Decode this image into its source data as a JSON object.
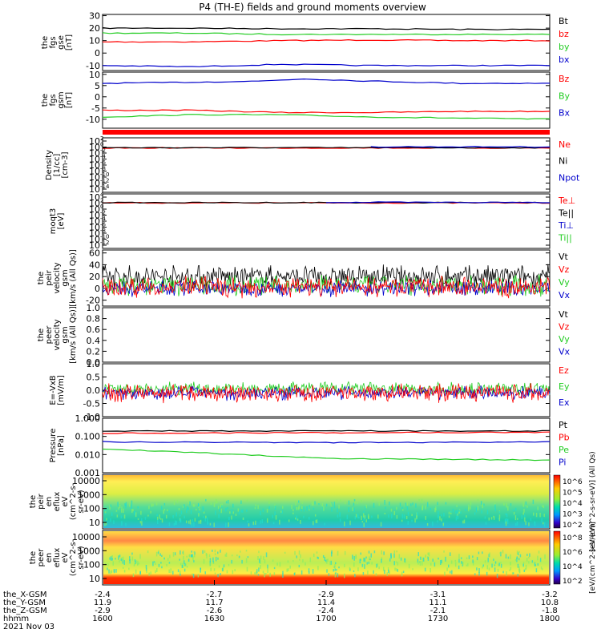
{
  "title": "P4 (TH-E) fields and ground moments overview",
  "colors": {
    "black": "#000000",
    "red": "#ff0000",
    "green": "#22cc22",
    "blue": "#0000cc"
  },
  "chart_data": [
    {
      "type": "line",
      "ylabel": [
        "the",
        "fgs",
        "gse",
        "[nT]"
      ],
      "ylim": [
        -14,
        31
      ],
      "ticks": [
        "30",
        "20",
        "10",
        "0",
        "-10"
      ],
      "tickvals": [
        30,
        20,
        10,
        0,
        -10
      ],
      "legend": [
        {
          "name": "Bt",
          "color": "black"
        },
        {
          "name": "bz",
          "color": "red"
        },
        {
          "name": "by",
          "color": "green"
        },
        {
          "name": "bx",
          "color": "blue"
        }
      ],
      "series": [
        {
          "color": "black",
          "x": [
            0,
            0.2,
            0.4,
            0.6,
            0.8,
            1
          ],
          "y": [
            20,
            20,
            19.5,
            19.5,
            19,
            19
          ]
        },
        {
          "color": "red",
          "x": [
            0,
            0.2,
            0.4,
            0.6,
            0.8,
            1
          ],
          "y": [
            9,
            9,
            10,
            10.5,
            10,
            10
          ]
        },
        {
          "color": "green",
          "x": [
            0,
            0.2,
            0.4,
            0.6,
            0.8,
            1
          ],
          "y": [
            16,
            16,
            15,
            15,
            15,
            15
          ]
        },
        {
          "color": "blue",
          "x": [
            0,
            0.2,
            0.4,
            0.6,
            0.8,
            1
          ],
          "y": [
            -10,
            -11,
            -9,
            -10,
            -10,
            -10
          ]
        }
      ]
    },
    {
      "type": "line",
      "ylabel": [
        "the",
        "fgs",
        "gsm",
        "[nT]"
      ],
      "ylim": [
        -14,
        11
      ],
      "ticks": [
        "10",
        "5",
        "0",
        "-5",
        "-10"
      ],
      "tickvals": [
        10,
        5,
        0,
        -5,
        -10
      ],
      "legend": [
        {
          "name": "Bz",
          "color": "red"
        },
        {
          "name": "By",
          "color": "green"
        },
        {
          "name": "Bx",
          "color": "blue"
        }
      ],
      "series": [
        {
          "color": "blue",
          "x": [
            0,
            0.2,
            0.35,
            0.45,
            0.6,
            0.8,
            1
          ],
          "y": [
            6,
            6.5,
            7,
            8,
            7,
            6,
            6
          ]
        },
        {
          "color": "red",
          "x": [
            0,
            0.2,
            0.4,
            0.6,
            0.8,
            1
          ],
          "y": [
            -6,
            -6,
            -7,
            -7,
            -6.5,
            -6.5
          ]
        },
        {
          "color": "green",
          "x": [
            0,
            0.2,
            0.4,
            0.6,
            0.8,
            1
          ],
          "y": [
            -9,
            -8,
            -8,
            -9,
            -9.5,
            -10
          ]
        }
      ]
    },
    {
      "type": "line",
      "scale": "log",
      "ylabel": [
        "Density",
        "[1/cc]",
        "[cm-3]"
      ],
      "ticks": [
        "10^2",
        "10^0",
        "10^-2",
        "10^-4",
        "10^-6",
        "10^-8",
        "10^-10",
        "10^-12",
        "10^-14"
      ],
      "legend": [
        {
          "name": "Ne",
          "color": "red"
        },
        {
          "name": "Ni",
          "color": "black"
        },
        {
          "name": "Npot",
          "color": "blue"
        }
      ],
      "series": [
        {
          "color": "red",
          "x": [
            0,
            1
          ],
          "y": [
            0.5,
            0.5
          ]
        },
        {
          "color": "black",
          "x": [
            0,
            1
          ],
          "y": [
            0.6,
            0.6
          ]
        },
        {
          "color": "blue",
          "x": [
            0.6,
            1
          ],
          "y": [
            1.2,
            1.2
          ]
        }
      ]
    },
    {
      "type": "line",
      "scale": "log",
      "ylabel": [
        "moqt3",
        "[eV]"
      ],
      "ticks": [
        "10^4",
        "10^2",
        "10^0",
        "10^-2",
        "10^-4",
        "10^-6",
        "10^-8",
        "10^-10",
        "10^-12"
      ],
      "legend": [
        {
          "name": "Te⊥",
          "color": "red"
        },
        {
          "name": "Te||",
          "color": "black"
        },
        {
          "name": "Ti⊥",
          "color": "blue"
        },
        {
          "name": "Ti||",
          "color": "green"
        }
      ],
      "series": [
        {
          "color": "red",
          "x": [
            0,
            1
          ],
          "y": [
            1.2,
            1.2
          ]
        },
        {
          "color": "black",
          "x": [
            0,
            1
          ],
          "y": [
            1.5,
            1.5
          ]
        },
        {
          "color": "blue",
          "x": [
            0.5,
            1
          ],
          "y": [
            1.8,
            1.8
          ]
        }
      ]
    },
    {
      "type": "line",
      "ylabel": [
        "the",
        "peir",
        "velocity",
        "gsm",
        "[km/s (All Qs)]"
      ],
      "ylim": [
        -30,
        65
      ],
      "ticks": [
        "60",
        "40",
        "20",
        "0",
        "-20"
      ],
      "tickvals": [
        60,
        40,
        20,
        0,
        -20
      ],
      "legend": [
        {
          "name": "Vt",
          "color": "black"
        },
        {
          "name": "Vz",
          "color": "red"
        },
        {
          "name": "Vy",
          "color": "green"
        },
        {
          "name": "Vx",
          "color": "blue"
        }
      ],
      "noisy": [
        {
          "color": "black",
          "center": 20,
          "amp": 22
        },
        {
          "color": "green",
          "center": 5,
          "amp": 20
        },
        {
          "color": "blue",
          "center": 0,
          "amp": 15
        },
        {
          "color": "red",
          "center": 2,
          "amp": 20
        }
      ]
    },
    {
      "type": "line",
      "ylabel": [
        "the",
        "peer",
        "velocity",
        "gsm",
        "[km/s (All Qs)]"
      ],
      "ylim": [
        0,
        1
      ],
      "ticks": [
        "1.0",
        "0.8",
        "0.6",
        "0.4",
        "0.2",
        "0.0"
      ],
      "tickvals": [
        1,
        0.8,
        0.6,
        0.4,
        0.2,
        0
      ],
      "legend": [
        {
          "name": "Vt",
          "color": "black"
        },
        {
          "name": "Vz",
          "color": "red"
        },
        {
          "name": "Vy",
          "color": "green"
        },
        {
          "name": "Vx",
          "color": "blue"
        }
      ]
    },
    {
      "type": "line",
      "ylabel": [
        "E=-VxB",
        "[mV/m]"
      ],
      "ylim": [
        -1,
        1
      ],
      "ticks": [
        "1.0",
        "0.5",
        "0.0",
        "-0.5",
        "-1.0"
      ],
      "tickvals": [
        1,
        0.5,
        0,
        -0.5,
        -1
      ],
      "legend": [
        {
          "name": "Ez",
          "color": "red"
        },
        {
          "name": "Ey",
          "color": "green"
        },
        {
          "name": "Ex",
          "color": "blue"
        }
      ],
      "noisy": [
        {
          "color": "green",
          "center": 0.05,
          "amp": 0.3
        },
        {
          "color": "blue",
          "center": -0.1,
          "amp": 0.3
        },
        {
          "color": "red",
          "center": -0.1,
          "amp": 0.4
        }
      ]
    },
    {
      "type": "line",
      "scale": "log",
      "ylabel": [
        "Pressure",
        "[nPa]"
      ],
      "ticks": [
        "1.000",
        "0.100",
        "0.010",
        "0.001"
      ],
      "tickvals": [
        1,
        0.1,
        0.01,
        0.001
      ],
      "ylim": [
        0.001,
        1
      ],
      "legend": [
        {
          "name": "Pt",
          "color": "black"
        },
        {
          "name": "Pb",
          "color": "red"
        },
        {
          "name": "Pe",
          "color": "green"
        },
        {
          "name": "Pi",
          "color": "blue"
        }
      ],
      "series": [
        {
          "color": "black",
          "x": [
            0,
            1
          ],
          "y": [
            0.2,
            0.2
          ]
        },
        {
          "color": "red",
          "x": [
            0,
            0.5,
            1
          ],
          "y": [
            0.15,
            0.16,
            0.17
          ]
        },
        {
          "color": "blue",
          "x": [
            0,
            0.5,
            1
          ],
          "y": [
            0.05,
            0.045,
            0.05
          ]
        },
        {
          "color": "green",
          "x": [
            0,
            0.3,
            0.5,
            1
          ],
          "y": [
            0.02,
            0.01,
            0.006,
            0.005
          ]
        }
      ]
    },
    {
      "type": "heatmap",
      "ylabel": [
        "the",
        "peir",
        "en",
        "eflux",
        "eV",
        "(cm^2-s-",
        "sr-eV)"
      ],
      "ticks": [
        "10000",
        "1000",
        "100",
        "10"
      ],
      "tickvals": [
        10000,
        1000,
        100,
        10
      ],
      "colorbar": {
        "ticks": [
          "10^6",
          "10^5",
          "10^4",
          "10^3",
          "10^2"
        ],
        "label": "[eV/(cm^2-s-sr-eV)] (All Qs)"
      }
    },
    {
      "type": "heatmap",
      "ylabel": [
        "the",
        "peer",
        "en",
        "eflux",
        "eV",
        "(cm^2-s-",
        "sr-eV)"
      ],
      "ticks": [
        "10000",
        "1000",
        "100",
        "10"
      ],
      "tickvals": [
        10000,
        1000,
        100,
        10
      ],
      "colorbar": {
        "ticks": [
          "10^8",
          "10^6",
          "10^4",
          "10^2"
        ],
        "label": "[eV/(cm^2-s-sr-eV)]"
      }
    }
  ],
  "xaxis": {
    "row_labels": [
      "the_X-GSM",
      "the_Y-GSM",
      "the_Z-GSM",
      "hhmm",
      "2021 Nov 03"
    ],
    "ticks": [
      {
        "X": "-2.4",
        "Y": "11.9",
        "Z": "-2.9",
        "hhmm": "1600"
      },
      {
        "X": "-2.7",
        "Y": "11.7",
        "Z": "-2.6",
        "hhmm": "1630"
      },
      {
        "X": "-2.9",
        "Y": "11.4",
        "Z": "-2.4",
        "hhmm": "1700"
      },
      {
        "X": "-3.1",
        "Y": "11.1",
        "Z": "-2.1",
        "hhmm": "1730"
      },
      {
        "X": "-3.2",
        "Y": "10.8",
        "Z": "-1.8",
        "hhmm": "1800"
      }
    ]
  }
}
